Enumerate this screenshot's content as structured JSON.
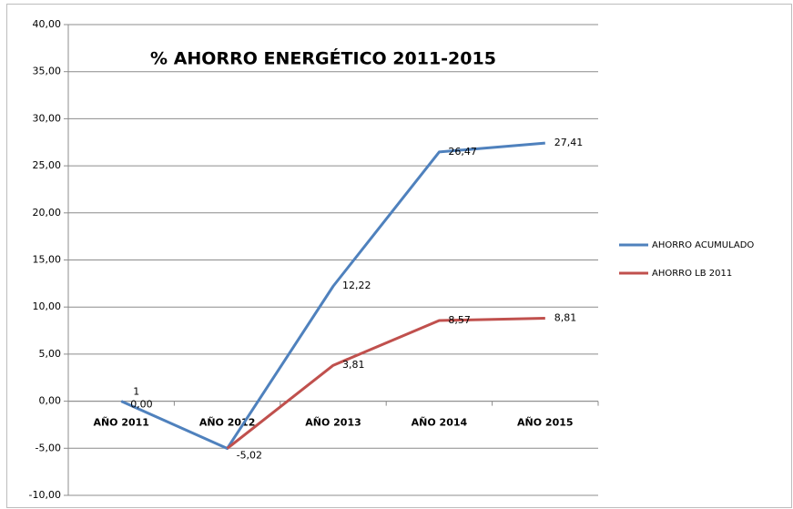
{
  "chart_data": {
    "type": "line",
    "title": "% AHORRO ENERGÉTICO 2011-2015",
    "categories": [
      "AÑO 2011",
      "AÑO 2012",
      "AÑO 2013",
      "AÑO 2014",
      "AÑO 2015"
    ],
    "series": [
      {
        "name": "AHORRO ACUMULADO",
        "color": "#4f81bd",
        "values": [
          0,
          -5.02,
          12.22,
          26.47,
          27.41
        ],
        "value_labels": [
          "0,00",
          "-5,02",
          "12,22",
          "26,47",
          "27,41"
        ]
      },
      {
        "name": "AHORRO LB 2011",
        "color": "#c0504d",
        "values": [
          null,
          -5.02,
          3.81,
          8.57,
          8.81
        ],
        "value_labels": [
          null,
          null,
          "3,81",
          "8,57",
          "8,81"
        ]
      }
    ],
    "annotations": [
      "1"
    ],
    "ylim": [
      -10,
      40
    ],
    "yticks": [
      {
        "value": -10,
        "label": "-10,00"
      },
      {
        "value": -5,
        "label": "-5,00"
      },
      {
        "value": 0,
        "label": "0,00"
      },
      {
        "value": 5,
        "label": "5,00"
      },
      {
        "value": 10,
        "label": "10,00"
      },
      {
        "value": 15,
        "label": "15,00"
      },
      {
        "value": 20,
        "label": "20,00"
      },
      {
        "value": 25,
        "label": "25,00"
      },
      {
        "value": 30,
        "label": "30,00"
      },
      {
        "value": 35,
        "label": "35,00"
      },
      {
        "value": 40,
        "label": "40,00"
      }
    ],
    "grid": true,
    "legend": "right"
  }
}
